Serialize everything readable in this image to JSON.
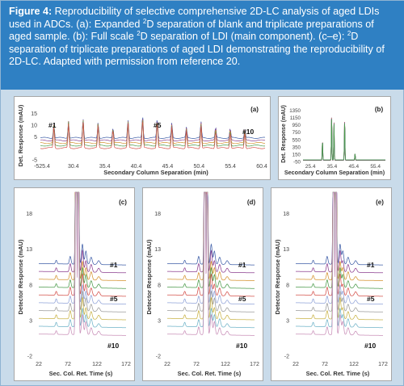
{
  "caption": {
    "label": "Figure 4:",
    "text_1": " Reproducibility of selective comprehensive 2D-LC analysis of aged LDIs used in ADCs. (a): Expanded ",
    "sup_1": "2",
    "text_2": "D separation of blank and triplicate preparations of aged sample. (b): Full scale ",
    "sup_2": "2",
    "text_3": "D separation of LDI (main component). (c–e): ",
    "sup_3": "2",
    "text_4": "D separation of triplicate preparations of aged LDI demonstrating the reproducibility of 2D-LC. Adapted with permission from reference 20."
  },
  "colors": {
    "caption_bg": "#2f80c3",
    "figure_bg": "#c9dbea",
    "trace_colors": [
      "#3f5fa8",
      "#8c3f8f",
      "#d4922f",
      "#4a9a4a",
      "#d4504a",
      "#8fa2d8",
      "#9a9a9a",
      "#c9b347",
      "#6fb3c8",
      "#c98fb8"
    ]
  },
  "chart_data": [
    {
      "type": "line",
      "panel_label": "(a)",
      "xlabel": "Secondary Column Separation (min)",
      "ylabel": "Det. Response (mAU)",
      "xticks": [
        "-525.4",
        "30.4",
        "35.4",
        "40.4",
        "45.4",
        "50.4",
        "55.4",
        "60.4"
      ],
      "yticks": [
        "-5",
        "5",
        "10",
        "15"
      ],
      "ylim": [
        -5,
        18
      ],
      "annotations": [
        "#1",
        "#5",
        "#10"
      ],
      "n_traces": 5,
      "peak_fractions": [
        0.06,
        0.125,
        0.19,
        0.257,
        0.323,
        0.39,
        0.455,
        0.52,
        0.585,
        0.65,
        0.715,
        0.78,
        0.845,
        0.91
      ],
      "peak_heights": [
        10.5,
        12,
        13,
        11.5,
        9,
        12.5,
        14.5,
        13,
        11,
        9,
        11.5,
        9,
        8.5,
        8
      ]
    },
    {
      "type": "line",
      "panel_label": "(b)",
      "xlabel": "Secondary Column Separation (min)",
      "ylabel": "Det. Response (mAU)",
      "xticks": [
        "25.4",
        "35.4",
        "45.4",
        "55.4"
      ],
      "yticks": [
        "-50",
        "150",
        "350",
        "550",
        "750",
        "950",
        "1150",
        "1350"
      ],
      "ylim": [
        -50,
        1450
      ],
      "peaks": [
        {
          "x": 31.0,
          "y": 550
        },
        {
          "x": 35.2,
          "y": 1250
        },
        {
          "x": 36.3,
          "y": 1050
        },
        {
          "x": 41.2,
          "y": 1150
        },
        {
          "x": 46.0,
          "y": 180
        }
      ]
    },
    {
      "type": "line",
      "panel_label": "(c)",
      "xlabel": "Sec. Col. Ret. Time (s)",
      "ylabel": "Detector Response (mAU)",
      "xticks": [
        "22",
        "72",
        "122",
        "172"
      ],
      "yticks": [
        "-2",
        "3",
        "8",
        "13",
        "18"
      ],
      "ylim": [
        -2,
        20
      ],
      "xlim": [
        22,
        172
      ],
      "annotations": [
        "#1",
        "#5",
        "#10"
      ],
      "n_traces": 10,
      "trace_offset_start": 11,
      "trace_offset_step": -1.1
    },
    {
      "type": "line",
      "panel_label": "(d)",
      "xlabel": "Sec. Col. Ret. Time (s)",
      "ylabel": "Detector Response (mAU)",
      "xticks": [
        "22",
        "72",
        "122",
        "172"
      ],
      "yticks": [
        "-2",
        "3",
        "8",
        "13",
        "18"
      ],
      "ylim": [
        -2,
        20
      ],
      "xlim": [
        22,
        172
      ],
      "annotations": [
        "#1",
        "#5",
        "#10"
      ],
      "n_traces": 10,
      "trace_offset_start": 11,
      "trace_offset_step": -1.1
    },
    {
      "type": "line",
      "panel_label": "(e)",
      "xlabel": "Sec. Col. Ret. Time (s)",
      "ylabel": "Detector Response (mAU)",
      "xticks": [
        "22",
        "72",
        "122",
        "172"
      ],
      "yticks": [
        "-2",
        "3",
        "8",
        "13",
        "18"
      ],
      "ylim": [
        -2,
        20
      ],
      "xlim": [
        22,
        172
      ],
      "annotations": [
        "#1",
        "#5",
        "#10"
      ],
      "n_traces": 10,
      "trace_offset_start": 11,
      "trace_offset_step": -1.1
    }
  ]
}
